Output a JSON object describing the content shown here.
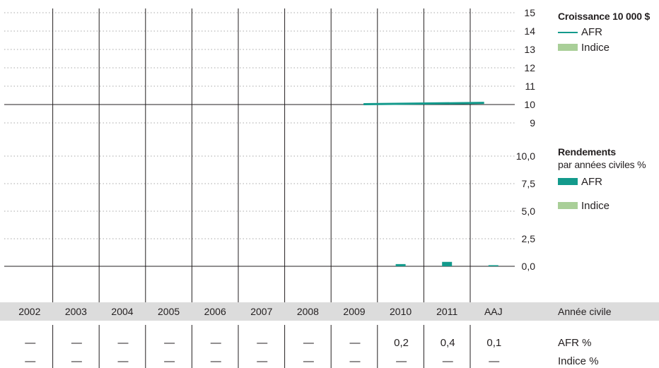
{
  "colors": {
    "fund": "#139a8c",
    "index": "#a9cf98",
    "band": "#dcdcdc",
    "grid": "#8a8a8a",
    "axis": "#231f20"
  },
  "growth_legend": {
    "title": "Croissance 10 000 $",
    "items": [
      {
        "label": "AFR",
        "swatch": "line"
      },
      {
        "label": "Indice",
        "swatch": "box"
      }
    ]
  },
  "returns_legend": {
    "title": "Rendements",
    "subtitle": "par années civiles %",
    "items": [
      {
        "label": "AFR",
        "swatch": "box-fund"
      },
      {
        "label": "Indice",
        "swatch": "box-index"
      }
    ]
  },
  "table": {
    "header_label": "Année civile",
    "row_labels": [
      "AFR %",
      "Indice %"
    ],
    "afr": [
      "—",
      "—",
      "—",
      "—",
      "—",
      "—",
      "—",
      "—",
      "0,2",
      "0,4",
      "0,1"
    ],
    "index": [
      "—",
      "—",
      "—",
      "—",
      "—",
      "—",
      "—",
      "—",
      "—",
      "—",
      "—"
    ]
  },
  "chart_data": [
    {
      "type": "line",
      "title": "Croissance 10 000 $",
      "ylim": [
        9,
        15
      ],
      "yticks": [
        "9",
        "10",
        "11",
        "12",
        "13",
        "14",
        "15"
      ],
      "series": [
        {
          "name": "AFR",
          "x_start": 2009.7,
          "x_end": 2012.3,
          "y_start": 10.02,
          "y_end": 10.09
        }
      ]
    },
    {
      "type": "bar",
      "title": "Rendements",
      "subtitle": "par années civiles %",
      "categories": [
        "2002",
        "2003",
        "2004",
        "2005",
        "2006",
        "2007",
        "2008",
        "2009",
        "2010",
        "2011",
        "AAJ"
      ],
      "ylim": [
        0,
        10
      ],
      "yticks": [
        "0,0",
        "2,5",
        "5,0",
        "7,5",
        "10,0"
      ],
      "series": [
        {
          "name": "AFR",
          "values": [
            null,
            null,
            null,
            null,
            null,
            null,
            null,
            null,
            0.2,
            0.4,
            0.1
          ]
        },
        {
          "name": "Indice",
          "values": [
            null,
            null,
            null,
            null,
            null,
            null,
            null,
            null,
            null,
            null,
            null
          ]
        }
      ]
    }
  ]
}
